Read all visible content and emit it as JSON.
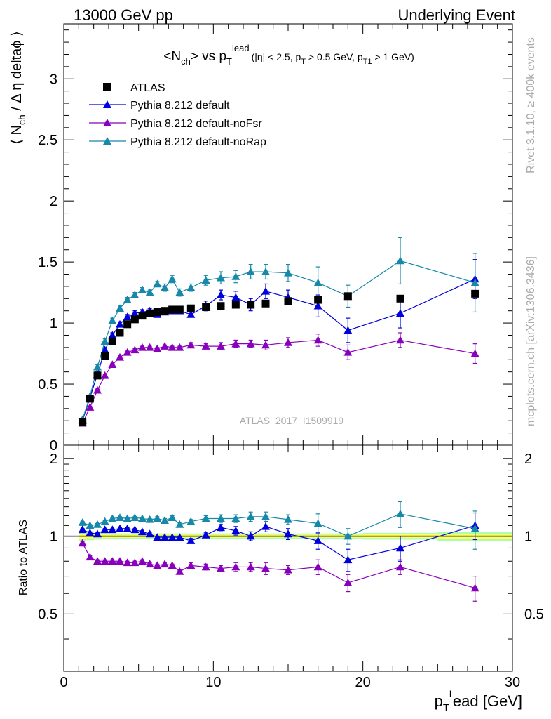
{
  "header": {
    "left": "13000 GeV pp",
    "right": "Underlying Event"
  },
  "side": {
    "rivet": "Rivet 3.1.10, ≥ 400k events",
    "mcplots": "mcplots.cern.ch [arXiv:1306.3436]"
  },
  "colors": {
    "atlas": "#000000",
    "default": "#0000dd",
    "noFsr": "#8800bb",
    "noRap": "#1688aa",
    "band_inner": "#ffff66",
    "band_outer": "#aaffaa",
    "watermark": "#aaaaaa"
  },
  "chart_data": {
    "type": "scatter",
    "title": "<N_ch> vs p_T^lead (|η| < 2.5, p_T > 0.5 GeV, p_T1 > 1 GeV)",
    "title_main": "<N",
    "title_sub1": "ch",
    "title_mid": "> vs p",
    "title_sub2": "T",
    "title_sup2": "lead",
    "title_cond": "(|η| < 2.5, p",
    "title_cond_sub1": "T",
    "title_cond_mid": " > 0.5 GeV, p",
    "title_cond_sub2": "T1",
    "title_cond_end": " > 1 GeV)",
    "ylabel": "⟨ N_ch / Δη deltaϕ ⟩",
    "ylabel_a": "⟨ N",
    "ylabel_sub": "ch",
    "ylabel_b": " / Δ η deltaϕ ⟩",
    "xlabel": "p_T^l ead [GeV]",
    "xlabel_a": "p",
    "xlabel_sub": "T",
    "xlabel_sup": "l",
    "xlabel_b": "ead [GeV]",
    "ratio_ylabel": "Ratio to ATLAS",
    "watermark": "ATLAS_2017_I1509919",
    "xlim": [
      0,
      30
    ],
    "ylim": [
      0,
      3.45
    ],
    "ratio_ylim": [
      0.3,
      2.25
    ],
    "x_ticks": [
      "0",
      "10",
      "20",
      "30"
    ],
    "y_ticks": [
      "0",
      "0.5",
      "1",
      "1.5",
      "2",
      "2.5",
      "3"
    ],
    "ratio_ticks": [
      "0.5",
      "1",
      "2"
    ],
    "legend_position": "top-left",
    "legend": [
      "ATLAS",
      "Pythia 8.212 default",
      "Pythia 8.212 default-noFsr",
      "Pythia 8.212 default-noRap"
    ],
    "atlas": {
      "name": "ATLAS",
      "x": [
        1.25,
        1.75,
        2.25,
        2.75,
        3.25,
        3.75,
        4.25,
        4.75,
        5.25,
        5.75,
        6.25,
        6.75,
        7.25,
        7.75,
        8.5,
        9.5,
        10.5,
        11.5,
        12.5,
        13.5,
        15.0,
        17.0,
        19.0,
        22.5,
        27.5
      ],
      "y": [
        0.19,
        0.38,
        0.57,
        0.73,
        0.85,
        0.92,
        0.99,
        1.03,
        1.06,
        1.08,
        1.09,
        1.1,
        1.11,
        1.11,
        1.12,
        1.13,
        1.14,
        1.15,
        1.15,
        1.16,
        1.18,
        1.19,
        1.22,
        1.2,
        1.24
      ]
    },
    "series": [
      {
        "name": "Pythia 8.212 default",
        "x": [
          1.25,
          1.75,
          2.25,
          2.75,
          3.25,
          3.75,
          4.25,
          4.75,
          5.25,
          5.75,
          6.25,
          6.75,
          7.25,
          7.75,
          8.5,
          9.5,
          10.5,
          11.5,
          12.5,
          13.5,
          15.0,
          17.0,
          19.0,
          22.5,
          27.5
        ],
        "y": [
          0.2,
          0.39,
          0.58,
          0.78,
          0.9,
          0.99,
          1.05,
          1.08,
          1.09,
          1.1,
          1.07,
          1.09,
          1.1,
          1.1,
          1.07,
          1.14,
          1.23,
          1.21,
          1.15,
          1.26,
          1.21,
          1.14,
          0.94,
          1.08,
          1.36
        ],
        "err": [
          0.01,
          0.01,
          0.02,
          0.02,
          0.02,
          0.02,
          0.02,
          0.02,
          0.02,
          0.02,
          0.02,
          0.02,
          0.02,
          0.02,
          0.02,
          0.04,
          0.04,
          0.05,
          0.05,
          0.06,
          0.06,
          0.09,
          0.1,
          0.12,
          0.16
        ],
        "ratio": [
          1.06,
          1.03,
          1.02,
          1.06,
          1.06,
          1.07,
          1.07,
          1.06,
          1.04,
          1.02,
          0.99,
          0.99,
          0.99,
          0.99,
          0.96,
          1.01,
          1.08,
          1.05,
          1.0,
          1.09,
          1.02,
          0.96,
          0.81,
          0.9,
          1.1
        ],
        "ratio_err": [
          0.01,
          0.01,
          0.01,
          0.01,
          0.01,
          0.01,
          0.01,
          0.01,
          0.01,
          0.01,
          0.01,
          0.01,
          0.01,
          0.01,
          0.02,
          0.02,
          0.03,
          0.04,
          0.04,
          0.05,
          0.05,
          0.07,
          0.08,
          0.1,
          0.13
        ],
        "marker": "triangle"
      },
      {
        "name": "Pythia 8.212 default-noFsr",
        "x": [
          1.25,
          1.75,
          2.25,
          2.75,
          3.25,
          3.75,
          4.25,
          4.75,
          5.25,
          5.75,
          6.25,
          6.75,
          7.25,
          7.75,
          8.5,
          9.5,
          10.5,
          11.5,
          12.5,
          13.5,
          15.0,
          17.0,
          19.0,
          22.5,
          27.5
        ],
        "y": [
          0.18,
          0.31,
          0.45,
          0.57,
          0.66,
          0.72,
          0.76,
          0.78,
          0.8,
          0.8,
          0.79,
          0.81,
          0.8,
          0.8,
          0.82,
          0.81,
          0.81,
          0.83,
          0.83,
          0.82,
          0.84,
          0.86,
          0.76,
          0.86,
          0.75
        ],
        "err": [
          0.01,
          0.01,
          0.01,
          0.01,
          0.01,
          0.01,
          0.01,
          0.01,
          0.01,
          0.01,
          0.01,
          0.01,
          0.01,
          0.01,
          0.02,
          0.02,
          0.03,
          0.03,
          0.03,
          0.04,
          0.04,
          0.05,
          0.06,
          0.06,
          0.08
        ],
        "ratio": [
          0.94,
          0.83,
          0.8,
          0.8,
          0.8,
          0.8,
          0.79,
          0.79,
          0.8,
          0.78,
          0.77,
          0.78,
          0.77,
          0.73,
          0.77,
          0.76,
          0.75,
          0.76,
          0.76,
          0.75,
          0.74,
          0.76,
          0.66,
          0.76,
          0.63
        ],
        "ratio_err": [
          0.01,
          0.01,
          0.01,
          0.01,
          0.01,
          0.01,
          0.01,
          0.01,
          0.01,
          0.01,
          0.01,
          0.01,
          0.01,
          0.01,
          0.02,
          0.02,
          0.02,
          0.03,
          0.03,
          0.04,
          0.03,
          0.05,
          0.05,
          0.05,
          0.07
        ],
        "marker": "triangle"
      },
      {
        "name": "Pythia 8.212 default-noRap",
        "x": [
          1.25,
          1.75,
          2.25,
          2.75,
          3.25,
          3.75,
          4.25,
          4.75,
          5.25,
          5.75,
          6.25,
          6.75,
          7.25,
          7.75,
          8.5,
          9.5,
          10.5,
          11.5,
          12.5,
          13.5,
          15.0,
          17.0,
          19.0,
          22.5,
          27.5
        ],
        "y": [
          0.21,
          0.4,
          0.64,
          0.85,
          1.02,
          1.12,
          1.19,
          1.23,
          1.27,
          1.25,
          1.32,
          1.29,
          1.36,
          1.25,
          1.29,
          1.35,
          1.37,
          1.38,
          1.42,
          1.42,
          1.41,
          1.33,
          1.22,
          1.51,
          1.33
        ],
        "err": [
          0.01,
          0.01,
          0.02,
          0.02,
          0.02,
          0.02,
          0.02,
          0.02,
          0.02,
          0.02,
          0.02,
          0.03,
          0.03,
          0.03,
          0.03,
          0.04,
          0.05,
          0.05,
          0.06,
          0.06,
          0.07,
          0.13,
          0.09,
          0.19,
          0.24
        ],
        "ratio": [
          1.13,
          1.1,
          1.11,
          1.14,
          1.17,
          1.18,
          1.17,
          1.18,
          1.17,
          1.16,
          1.17,
          1.15,
          1.18,
          1.11,
          1.14,
          1.17,
          1.17,
          1.17,
          1.19,
          1.19,
          1.16,
          1.12,
          1.0,
          1.22,
          1.07
        ],
        "ratio_err": [
          0.01,
          0.01,
          0.01,
          0.01,
          0.01,
          0.01,
          0.01,
          0.01,
          0.01,
          0.01,
          0.02,
          0.02,
          0.02,
          0.02,
          0.02,
          0.03,
          0.04,
          0.04,
          0.05,
          0.05,
          0.05,
          0.1,
          0.07,
          0.14,
          0.18
        ],
        "marker": "triangle"
      }
    ]
  }
}
